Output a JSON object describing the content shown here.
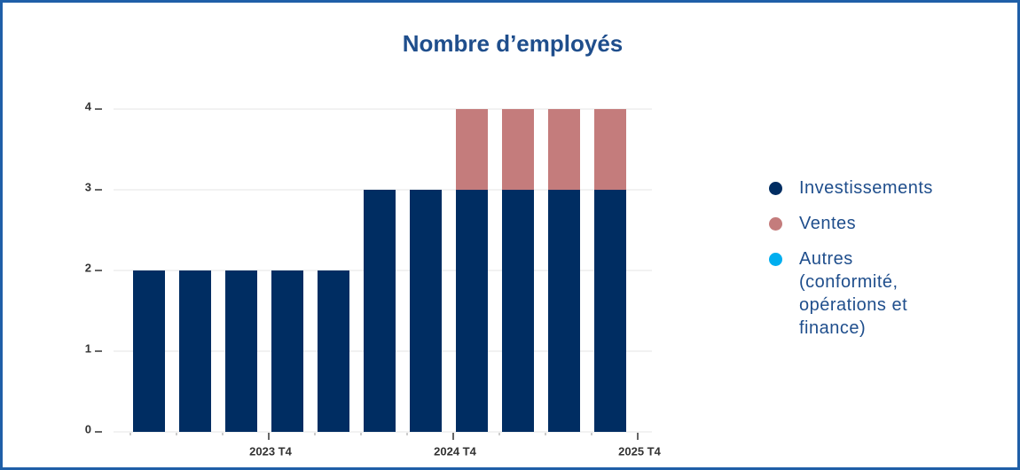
{
  "chart_data": {
    "type": "stacked_bar",
    "title": "Nombre d’employés",
    "series": [
      {
        "name": "Investissements",
        "color": "#002d62",
        "values": [
          2,
          2,
          2,
          2,
          2,
          3,
          3,
          3,
          3,
          3,
          3
        ]
      },
      {
        "name": "Ventes",
        "color": "#c47c7c",
        "values": [
          0,
          0,
          0,
          0,
          0,
          0,
          0,
          1,
          1,
          1,
          1
        ]
      },
      {
        "name": "Autres (conformité, opérations et finance)",
        "color": "#00aeef",
        "values": [
          0,
          0,
          0,
          0,
          0,
          0,
          0,
          0,
          0,
          0,
          0
        ]
      }
    ],
    "xlim": [
      0,
      11
    ],
    "xticks": [
      {
        "value": 3,
        "label": "2023 T4"
      },
      {
        "value": 7,
        "label": "2024 T4"
      },
      {
        "value": 11,
        "label": "2025 T4"
      }
    ],
    "ylim": [
      0,
      4
    ],
    "yticks": [
      0,
      1,
      2,
      3,
      4
    ],
    "grid": true,
    "legend": "right"
  }
}
